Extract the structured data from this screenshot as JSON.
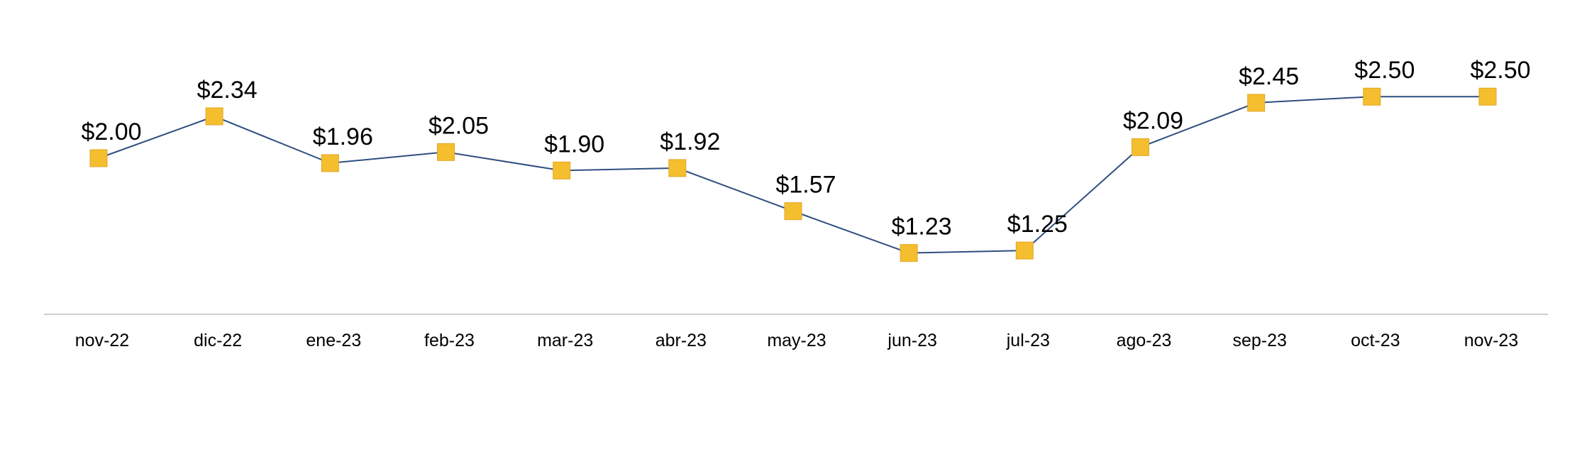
{
  "chart_data": {
    "type": "line",
    "categories": [
      "nov-22",
      "dic-22",
      "ene-23",
      "feb-23",
      "mar-23",
      "abr-23",
      "may-23",
      "jun-23",
      "jul-23",
      "ago-23",
      "sep-23",
      "oct-23",
      "nov-23"
    ],
    "series": [
      {
        "values": [
          2.0,
          2.34,
          1.96,
          2.05,
          1.9,
          1.92,
          1.57,
          1.23,
          1.25,
          2.09,
          2.45,
          2.5,
          2.5
        ],
        "data_labels": [
          "$2.00",
          "$2.34",
          "$1.96",
          "$2.05",
          "$1.90",
          "$1.92",
          "$1.57",
          "$1.23",
          "$1.25",
          "$2.09",
          "$2.45",
          "$2.50",
          "$2.50"
        ],
        "line_color": "#2F4F7F",
        "marker": "square",
        "marker_color": "#F5BE2E"
      }
    ],
    "ylim": [
      0,
      3
    ],
    "grid": false,
    "legend": "none",
    "axis_line_color": "#BFBFBF",
    "title": "",
    "xlabel": "",
    "ylabel": ""
  }
}
